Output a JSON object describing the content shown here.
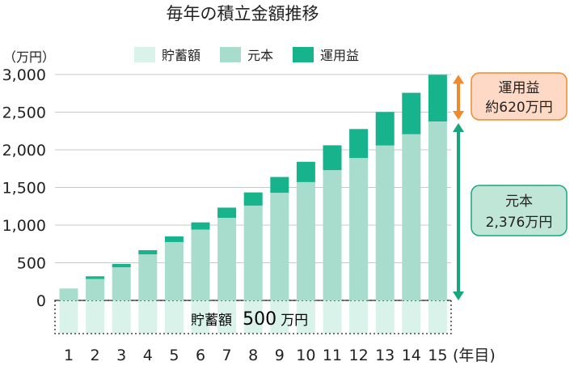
{
  "chart_data": {
    "type": "bar",
    "title": "毎年の積立金額推移",
    "unit_label": "（万円）",
    "x_unit_label": "(年目)",
    "categories": [
      "1",
      "2",
      "3",
      "4",
      "5",
      "6",
      "7",
      "8",
      "9",
      "10",
      "11",
      "12",
      "13",
      "14",
      "15"
    ],
    "ylim": [
      0,
      3000
    ],
    "yticks": [
      "0",
      "500",
      "1,000",
      "1,500",
      "2,000",
      "2,500",
      "3,000"
    ],
    "series": [
      {
        "name": "元本",
        "values": [
          158,
          285,
          440,
          612,
          775,
          941,
          1097,
          1259,
          1429,
          1571,
          1730,
          1891,
          2057,
          2207,
          2376
        ]
      },
      {
        "name": "運用益",
        "values": [
          0,
          35,
          45,
          55,
          75,
          95,
          135,
          175,
          210,
          270,
          330,
          385,
          445,
          550,
          620
        ]
      }
    ],
    "savings_band": {
      "name": "貯蓄額",
      "label": "貯蓄額",
      "amount": "500",
      "unit": "万円"
    },
    "annotations": [
      {
        "id": "gain",
        "line1": "運用益",
        "line2": "約620万円",
        "color": "#f08a2c",
        "box_fill": "#fdd9c6",
        "box_stroke": "#f08a2c"
      },
      {
        "id": "principal",
        "line1": "元本",
        "line2": "2,376万円",
        "color": "#1aa67d",
        "box_fill": "#bfe6d7",
        "box_stroke": "#1aa67d"
      }
    ],
    "colors": {
      "savings": "#d9f3eb",
      "principal": "#a8dccd",
      "gain": "#17b38d"
    },
    "grid": "horizontal",
    "legend_position": "top-center"
  }
}
